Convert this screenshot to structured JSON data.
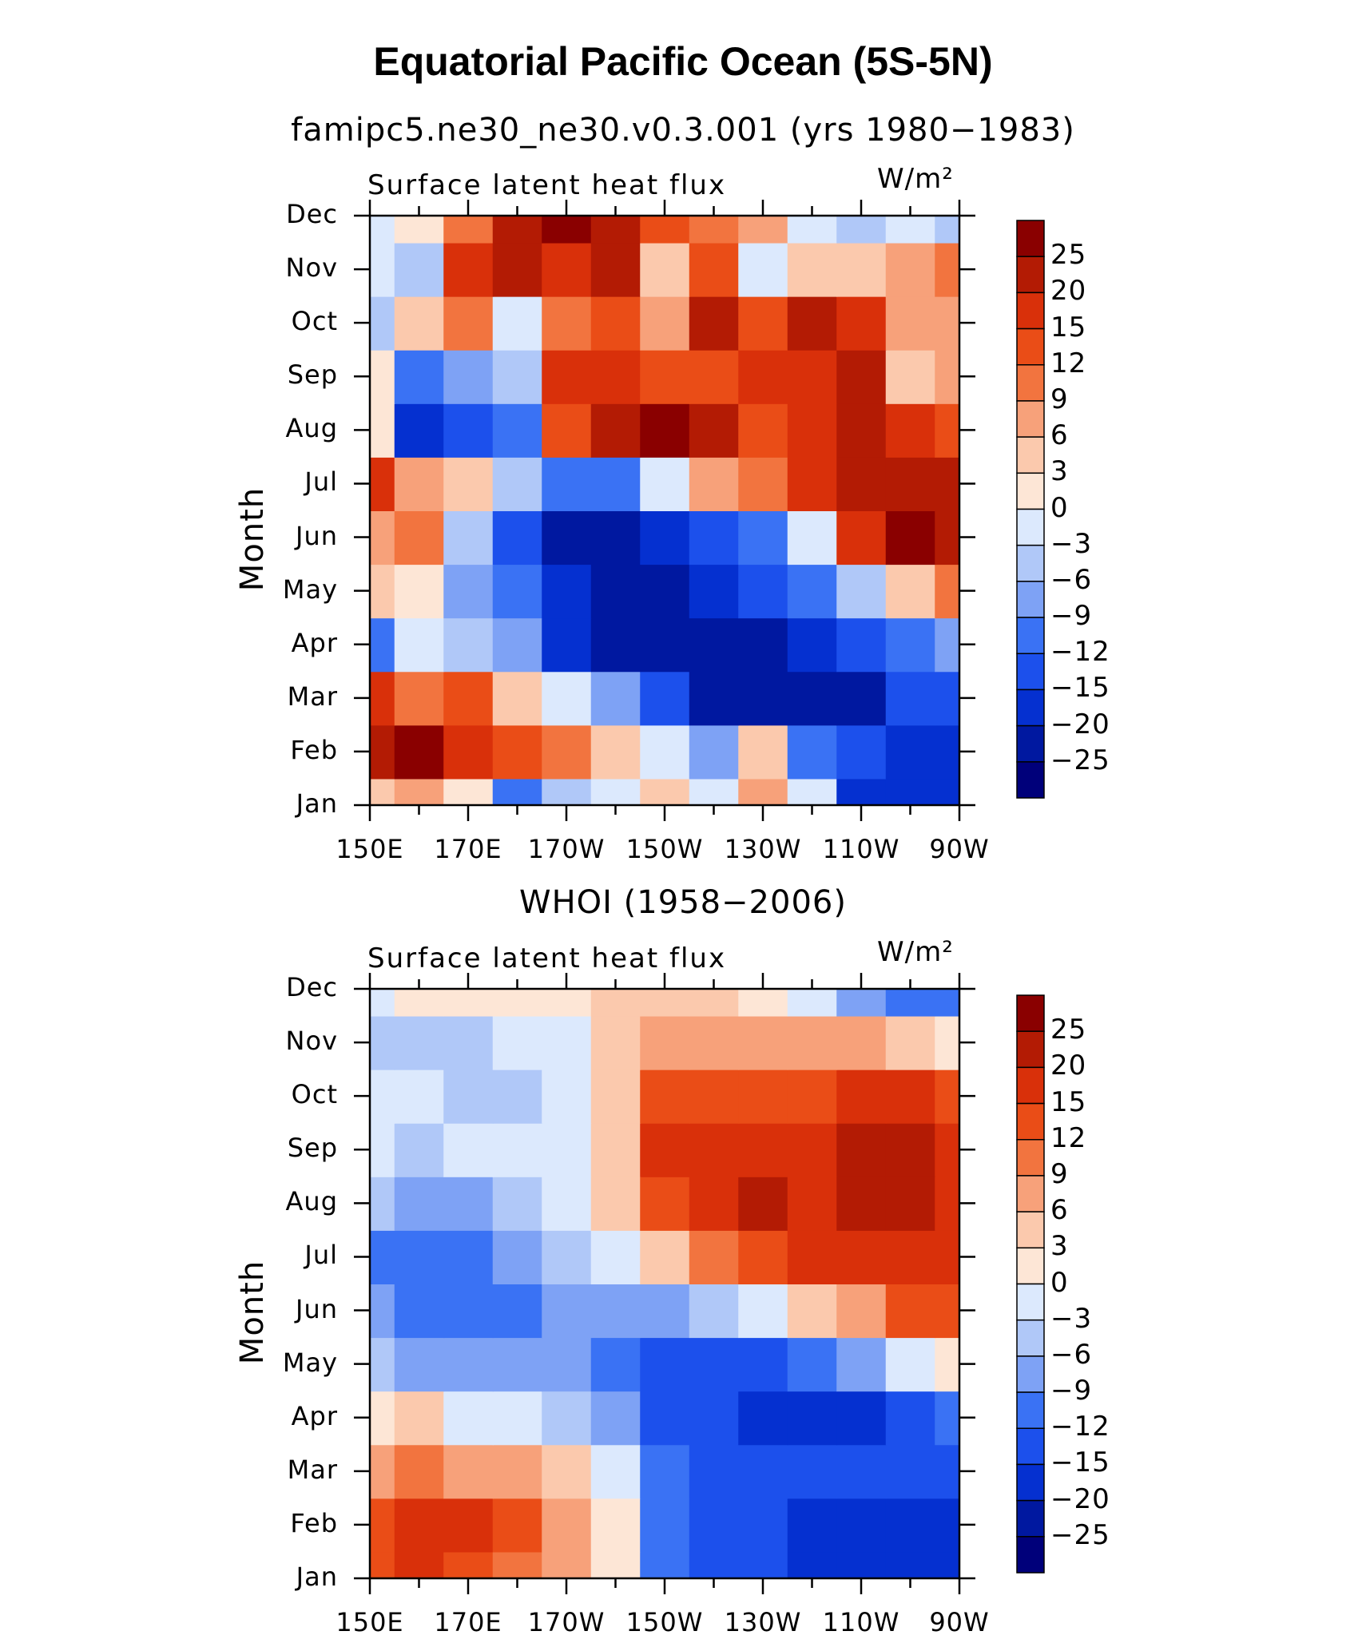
{
  "main_title": "Equatorial Pacific Ocean (5S-5N)",
  "chart_data": [
    {
      "type": "heatmap",
      "title": "famipc5.ne30_ne30.v0.3.001 (yrs 1980−1983)",
      "panel_label": "Surface latent heat flux",
      "units": "W/m²",
      "xlabel": "",
      "ylabel": "Month",
      "x_ticks": [
        "150E",
        "170E",
        "170W",
        "150W",
        "130W",
        "110W",
        "90W"
      ],
      "x_lon": [
        150,
        170,
        190,
        210,
        230,
        250,
        270
      ],
      "y_ticks": [
        "Jan",
        "Feb",
        "Mar",
        "Apr",
        "May",
        "Jun",
        "Jul",
        "Aug",
        "Sep",
        "Oct",
        "Nov",
        "Dec"
      ],
      "grid_x": [
        150,
        160,
        170,
        180,
        190,
        200,
        210,
        220,
        230,
        240,
        250,
        260,
        270
      ],
      "values": [
        [
          3,
          6,
          0,
          -12,
          -6,
          -3,
          3,
          -3,
          6,
          -3,
          -20,
          -20,
          -20
        ],
        [
          20,
          25,
          15,
          12,
          9,
          3,
          -3,
          -9,
          3,
          -12,
          -15,
          -20,
          -20
        ],
        [
          15,
          9,
          12,
          3,
          -3,
          -9,
          -15,
          -25,
          -25,
          -25,
          -25,
          -15,
          -15
        ],
        [
          -12,
          -3,
          -6,
          -9,
          -20,
          -25,
          -25,
          -25,
          -25,
          -20,
          -15,
          -12,
          -9
        ],
        [
          3,
          0,
          -9,
          -12,
          -20,
          -25,
          -25,
          -20,
          -15,
          -12,
          -6,
          3,
          9
        ],
        [
          6,
          9,
          -6,
          -15,
          -25,
          -25,
          -20,
          -15,
          -12,
          -3,
          15,
          25,
          20
        ],
        [
          15,
          6,
          3,
          -6,
          -12,
          -12,
          -3,
          6,
          9,
          15,
          20,
          20,
          20
        ],
        [
          0,
          -20,
          -15,
          -12,
          12,
          20,
          25,
          20,
          12,
          15,
          20,
          15,
          12
        ],
        [
          0,
          -12,
          -9,
          -6,
          15,
          15,
          12,
          12,
          15,
          15,
          20,
          3,
          6
        ],
        [
          -6,
          3,
          9,
          -3,
          9,
          12,
          6,
          20,
          12,
          20,
          15,
          6,
          6
        ],
        [
          -3,
          -6,
          15,
          20,
          15,
          20,
          3,
          12,
          -3,
          3,
          3,
          6,
          9
        ],
        [
          -3,
          0,
          9,
          20,
          25,
          20,
          12,
          9,
          6,
          -3,
          -6,
          -3,
          -6
        ]
      ],
      "levels": [
        -25,
        -20,
        -15,
        -12,
        -9,
        -6,
        -3,
        0,
        3,
        6,
        9,
        12,
        15,
        20,
        25
      ],
      "colorbar_labels": [
        "25",
        "20",
        "15",
        "12",
        "9",
        "6",
        "3",
        "0",
        "−3",
        "−6",
        "−9",
        "−12",
        "−15",
        "−20",
        "−25"
      ]
    },
    {
      "type": "heatmap",
      "title": "WHOI (1958−2006)",
      "panel_label": "Surface latent heat flux",
      "units": "W/m²",
      "xlabel": "",
      "ylabel": "Month",
      "x_ticks": [
        "150E",
        "170E",
        "170W",
        "150W",
        "130W",
        "110W",
        "90W"
      ],
      "x_lon": [
        150,
        170,
        190,
        210,
        230,
        250,
        270
      ],
      "y_ticks": [
        "Jan",
        "Feb",
        "Mar",
        "Apr",
        "May",
        "Jun",
        "Jul",
        "Aug",
        "Sep",
        "Oct",
        "Nov",
        "Dec"
      ],
      "grid_x": [
        150,
        160,
        170,
        180,
        190,
        200,
        210,
        220,
        230,
        240,
        250,
        260,
        270
      ],
      "values": [
        [
          12,
          15,
          12,
          9,
          6,
          0,
          -12,
          -15,
          -15,
          -20,
          -20,
          -20,
          -20
        ],
        [
          12,
          15,
          15,
          12,
          6,
          0,
          -12,
          -15,
          -15,
          -20,
          -20,
          -20,
          -20
        ],
        [
          6,
          9,
          6,
          6,
          3,
          -3,
          -12,
          -15,
          -15,
          -15,
          -15,
          -15,
          -15
        ],
        [
          0,
          3,
          -3,
          -3,
          -6,
          -9,
          -15,
          -15,
          -20,
          -20,
          -20,
          -15,
          -12
        ],
        [
          -6,
          -9,
          -9,
          -9,
          -9,
          -12,
          -15,
          -15,
          -15,
          -12,
          -9,
          -3,
          0
        ],
        [
          -9,
          -12,
          -12,
          -12,
          -9,
          -9,
          -9,
          -6,
          -3,
          3,
          6,
          12,
          12
        ],
        [
          -12,
          -12,
          -12,
          -9,
          -6,
          -3,
          3,
          9,
          12,
          15,
          15,
          15,
          15
        ],
        [
          -6,
          -9,
          -9,
          -6,
          -3,
          3,
          12,
          15,
          20,
          15,
          20,
          20,
          15
        ],
        [
          -3,
          -6,
          -3,
          -3,
          -3,
          3,
          15,
          15,
          15,
          15,
          20,
          20,
          15
        ],
        [
          -3,
          -3,
          -6,
          -6,
          -3,
          3,
          12,
          12,
          12,
          12,
          15,
          15,
          12
        ],
        [
          -6,
          -6,
          -6,
          -3,
          -3,
          3,
          6,
          6,
          6,
          6,
          6,
          3,
          0
        ],
        [
          -3,
          0,
          0,
          0,
          0,
          3,
          3,
          3,
          0,
          -3,
          -9,
          -12,
          -12
        ]
      ],
      "levels": [
        -25,
        -20,
        -15,
        -12,
        -9,
        -6,
        -3,
        0,
        3,
        6,
        9,
        12,
        15,
        20,
        25
      ],
      "colorbar_labels": [
        "25",
        "20",
        "15",
        "12",
        "9",
        "6",
        "3",
        "0",
        "−3",
        "−6",
        "−9",
        "−12",
        "−15",
        "−20",
        "−25"
      ]
    }
  ],
  "palette": [
    "#00007a",
    "#0018a0",
    "#0530d0",
    "#1c50ec",
    "#3a72f4",
    "#7ea2f5",
    "#b0c8f8",
    "#dce9fd",
    "#fde6d6",
    "#fbc9ad",
    "#f7a17a",
    "#f2743f",
    "#ea4d17",
    "#d9300a",
    "#b31b04",
    "#8a0000"
  ]
}
